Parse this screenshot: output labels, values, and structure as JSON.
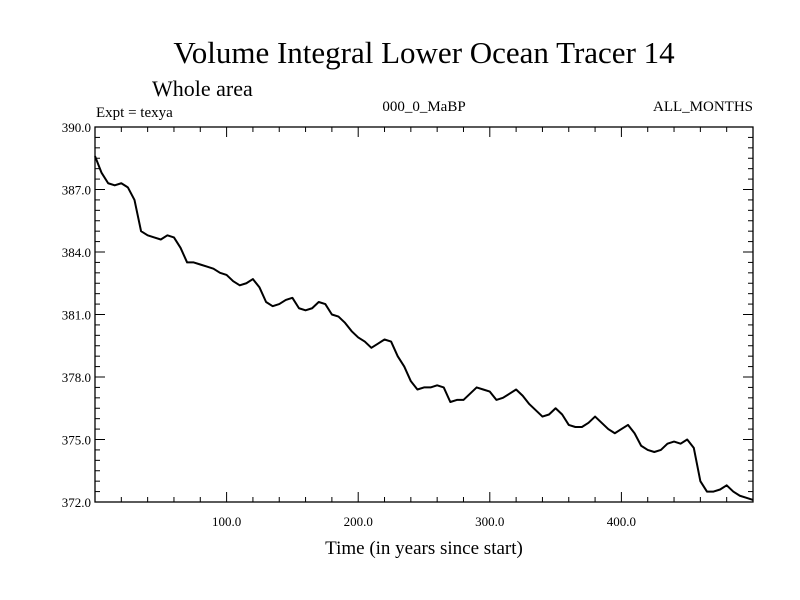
{
  "chart_data": {
    "type": "line",
    "title": "Volume Integral Lower Ocean Tracer 14",
    "subtitle": "Whole area",
    "experiment_label": "Expt = texya",
    "period_label": "000_0_MaBP",
    "months_label": "ALL_MONTHS",
    "xlabel": "Time (in years since start)",
    "ylabel": "",
    "xlim": [
      0,
      500
    ],
    "ylim": [
      372.0,
      390.0
    ],
    "x_ticks": [
      100,
      200,
      300,
      400
    ],
    "x_tick_labels": [
      "100.0",
      "200.0",
      "300.0",
      "400.0"
    ],
    "y_ticks": [
      372,
      375,
      378,
      381,
      384,
      387,
      390
    ],
    "y_tick_labels": [
      "372.0",
      "375.0",
      "378.0",
      "381.0",
      "384.0",
      "387.0",
      "390.0"
    ],
    "grid": false,
    "line_color": "#000000",
    "series": [
      {
        "x": [
          0,
          5,
          10,
          15,
          20,
          25,
          30,
          35,
          40,
          45,
          50,
          55,
          60,
          65,
          70,
          75,
          80,
          85,
          90,
          95,
          100,
          105,
          110,
          115,
          120,
          125,
          130,
          135,
          140,
          145,
          150,
          155,
          160,
          165,
          170,
          175,
          180,
          185,
          190,
          195,
          200,
          205,
          210,
          215,
          220,
          225,
          230,
          235,
          240,
          245,
          250,
          255,
          260,
          265,
          270,
          275,
          280,
          285,
          290,
          295,
          300,
          305,
          310,
          315,
          320,
          325,
          330,
          335,
          340,
          345,
          350,
          355,
          360,
          365,
          370,
          375,
          380,
          385,
          390,
          395,
          400,
          405,
          410,
          415,
          420,
          425,
          430,
          435,
          440,
          445,
          450,
          455,
          460,
          465,
          470,
          475,
          480,
          485,
          490,
          495,
          500
        ],
        "values": [
          388.6,
          387.8,
          387.3,
          387.2,
          387.3,
          387.1,
          386.5,
          385.0,
          384.8,
          384.7,
          384.6,
          384.8,
          384.7,
          384.2,
          383.5,
          383.5,
          383.4,
          383.3,
          383.2,
          383.0,
          382.9,
          382.6,
          382.4,
          382.5,
          382.7,
          382.3,
          381.6,
          381.4,
          381.5,
          381.7,
          381.8,
          381.3,
          381.2,
          381.3,
          381.6,
          381.5,
          381.0,
          380.9,
          380.6,
          380.2,
          379.9,
          379.7,
          379.4,
          379.6,
          379.8,
          379.7,
          379.0,
          378.5,
          377.8,
          377.4,
          377.5,
          377.5,
          377.6,
          377.5,
          376.8,
          376.9,
          376.9,
          377.2,
          377.5,
          377.4,
          377.3,
          376.9,
          377.0,
          377.2,
          377.4,
          377.1,
          376.7,
          376.4,
          376.1,
          376.2,
          376.5,
          376.2,
          375.7,
          375.6,
          375.6,
          375.8,
          376.1,
          375.8,
          375.5,
          375.3,
          375.5,
          375.7,
          375.3,
          374.7,
          374.5,
          374.4,
          374.5,
          374.8,
          374.9,
          374.8,
          375.0,
          374.6,
          373.0,
          372.5,
          372.5,
          372.6,
          372.8,
          372.5,
          372.3,
          372.2,
          372.1
        ]
      }
    ]
  }
}
